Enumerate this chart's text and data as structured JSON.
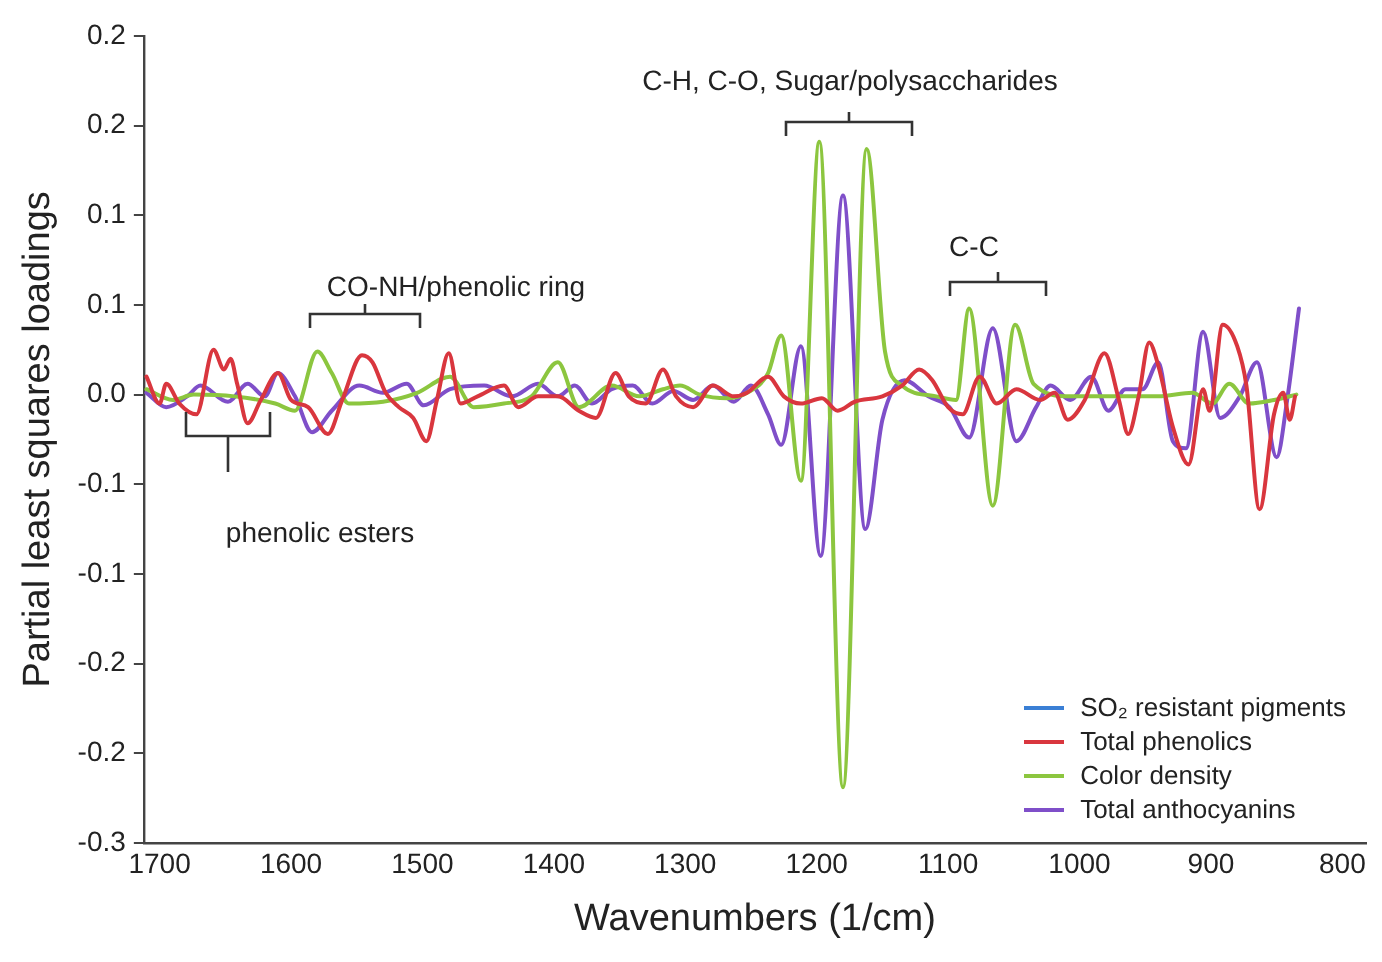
{
  "chart_data": {
    "type": "line",
    "xlabel": "Wavenumbers (1/cm)",
    "ylabel": "Partial least squares loadings",
    "xlim": [
      1712,
      782
    ],
    "xticks": [
      1700,
      1600,
      1500,
      1400,
      1300,
      1200,
      1100,
      1000,
      900,
      800
    ],
    "ylim": [
      -0.25,
      0.2
    ],
    "yticks": [
      {
        "value": 0.2,
        "label": "0.2"
      },
      {
        "value": 0.15,
        "label": "0.2"
      },
      {
        "value": 0.1,
        "label": "0.1"
      },
      {
        "value": 0.05,
        "label": "0.1"
      },
      {
        "value": 0,
        "label": "0.0"
      },
      {
        "value": -0.05,
        "label": "-0.1"
      },
      {
        "value": -0.1,
        "label": "-0.1"
      },
      {
        "value": -0.15,
        "label": "-0.2"
      },
      {
        "value": -0.2,
        "label": "-0.2"
      },
      {
        "value": -0.25,
        "label": "-0.3"
      }
    ],
    "grid": false,
    "legend": "bottom right",
    "marker": "none",
    "line_style": "solid",
    "annotations": [
      "C-H, C-O, Sugar/polysaccharides",
      "CO-NH/phenolic ring",
      "C-C",
      "phenolic esters"
    ],
    "series": [
      {
        "name": "SO₂ resistant pigments",
        "color": "#3a7fd5"
      },
      {
        "name": "Total phenolics",
        "color": "#d9363e",
        "x": [
          1710,
          1700,
          1695,
          1685,
          1672,
          1659,
          1651,
          1646,
          1641,
          1633,
          1623,
          1610,
          1600,
          1587,
          1572,
          1561,
          1546,
          1538,
          1528,
          1518,
          1507,
          1497,
          1489,
          1480,
          1471,
          1458,
          1438,
          1427,
          1412,
          1397,
          1381,
          1368,
          1353,
          1343,
          1330,
          1317,
          1307,
          1294,
          1279,
          1263,
          1253,
          1237,
          1225,
          1212,
          1196,
          1184,
          1171,
          1150,
          1135,
          1122,
          1112,
          1100,
          1089,
          1076,
          1063,
          1048,
          1030,
          1019,
          1009,
          996,
          981,
          970,
          963,
          955,
          947,
          940,
          929,
          917,
          906,
          901,
          891,
          880,
          873,
          863,
          852,
          845,
          840,
          836
        ],
        "values": [
          0.01,
          -0.005,
          0.006,
          -0.005,
          -0.011,
          0.025,
          0.014,
          0.02,
          0.006,
          -0.016,
          -0.003,
          0.012,
          -0.003,
          -0.007,
          -0.022,
          -0.003,
          0.022,
          0.018,
          0.001,
          -0.007,
          -0.013,
          -0.026,
          -0.003,
          0.023,
          -0.005,
          -0.001,
          0.005,
          -0.007,
          -0.001,
          -0.001,
          -0.009,
          -0.013,
          0.012,
          -0.001,
          -0.005,
          0.014,
          -0.001,
          -0.007,
          0.005,
          -0.001,
          0.001,
          0.01,
          -0.001,
          -0.005,
          -0.002,
          -0.009,
          -0.004,
          -0.001,
          0.005,
          0.014,
          0.008,
          -0.007,
          -0.011,
          0.01,
          -0.005,
          0.003,
          -0.003,
          0.001,
          -0.014,
          -0.003,
          0.023,
          -0.003,
          -0.022,
          -0.001,
          0.029,
          0.016,
          -0.018,
          -0.039,
          0.003,
          -0.009,
          0.039,
          0.027,
          0.005,
          -0.064,
          -0.011,
          0.001,
          -0.014,
          -0.001
        ]
      },
      {
        "name": "Color density",
        "color": "#8cc63f",
        "x": [
          1710,
          1690,
          1674,
          1643,
          1612,
          1597,
          1580,
          1569,
          1556,
          1530,
          1504,
          1479,
          1461,
          1438,
          1417,
          1397,
          1381,
          1356,
          1335,
          1317,
          1304,
          1289,
          1268,
          1253,
          1237,
          1227,
          1212,
          1198,
          1180,
          1162,
          1148,
          1135,
          1109,
          1094,
          1084,
          1066,
          1049,
          1035,
          1007,
          976,
          940,
          914,
          899,
          886,
          871,
          852,
          835
        ],
        "values": [
          0.003,
          -0.003,
          0,
          -0.001,
          -0.005,
          -0.009,
          0.024,
          0.012,
          -0.005,
          -0.004,
          0.001,
          0.01,
          -0.007,
          -0.005,
          -0.001,
          0.018,
          -0.007,
          0.005,
          -0.001,
          0.003,
          0.005,
          0,
          -0.002,
          0.001,
          0.012,
          0.033,
          -0.048,
          0.141,
          -0.219,
          0.137,
          0.024,
          0.005,
          -0.001,
          -0.003,
          0.048,
          -0.062,
          0.039,
          0.006,
          -0.001,
          -0.001,
          -0.001,
          0.001,
          -0.005,
          0.006,
          -0.005,
          -0.003,
          0
        ]
      },
      {
        "name": "Total anthocyanins",
        "color": "#7f4fc9",
        "x": [
          1710,
          1695,
          1679,
          1669,
          1648,
          1633,
          1620,
          1610,
          1597,
          1584,
          1569,
          1548,
          1530,
          1512,
          1499,
          1479,
          1453,
          1432,
          1412,
          1397,
          1384,
          1371,
          1356,
          1340,
          1325,
          1309,
          1294,
          1279,
          1263,
          1250,
          1237,
          1227,
          1212,
          1197,
          1180,
          1163,
          1150,
          1133,
          1115,
          1099,
          1084,
          1066,
          1048,
          1033,
          1022,
          1007,
          991,
          978,
          965,
          952,
          940,
          929,
          919,
          906,
          893,
          878,
          865,
          850,
          842,
          833
        ],
        "values": [
          0.001,
          -0.007,
          -0.001,
          0.005,
          -0.004,
          0.006,
          -0.001,
          0.012,
          -0.001,
          -0.021,
          -0.009,
          0.005,
          0.001,
          0.006,
          -0.006,
          0.003,
          0.005,
          -0.001,
          0.006,
          -0.001,
          0.005,
          -0.005,
          0.003,
          0.005,
          -0.005,
          0.002,
          -0.003,
          0.005,
          -0.004,
          0.005,
          -0.011,
          -0.028,
          0.027,
          -0.09,
          0.111,
          -0.075,
          -0.014,
          0.008,
          -0.001,
          -0.007,
          -0.024,
          0.037,
          -0.026,
          -0.007,
          0.005,
          -0.003,
          0.01,
          -0.009,
          0.003,
          0.003,
          0.018,
          -0.026,
          -0.03,
          0.035,
          -0.013,
          -0.001,
          0.018,
          -0.035,
          -0.003,
          0.048
        ]
      }
    ]
  }
}
